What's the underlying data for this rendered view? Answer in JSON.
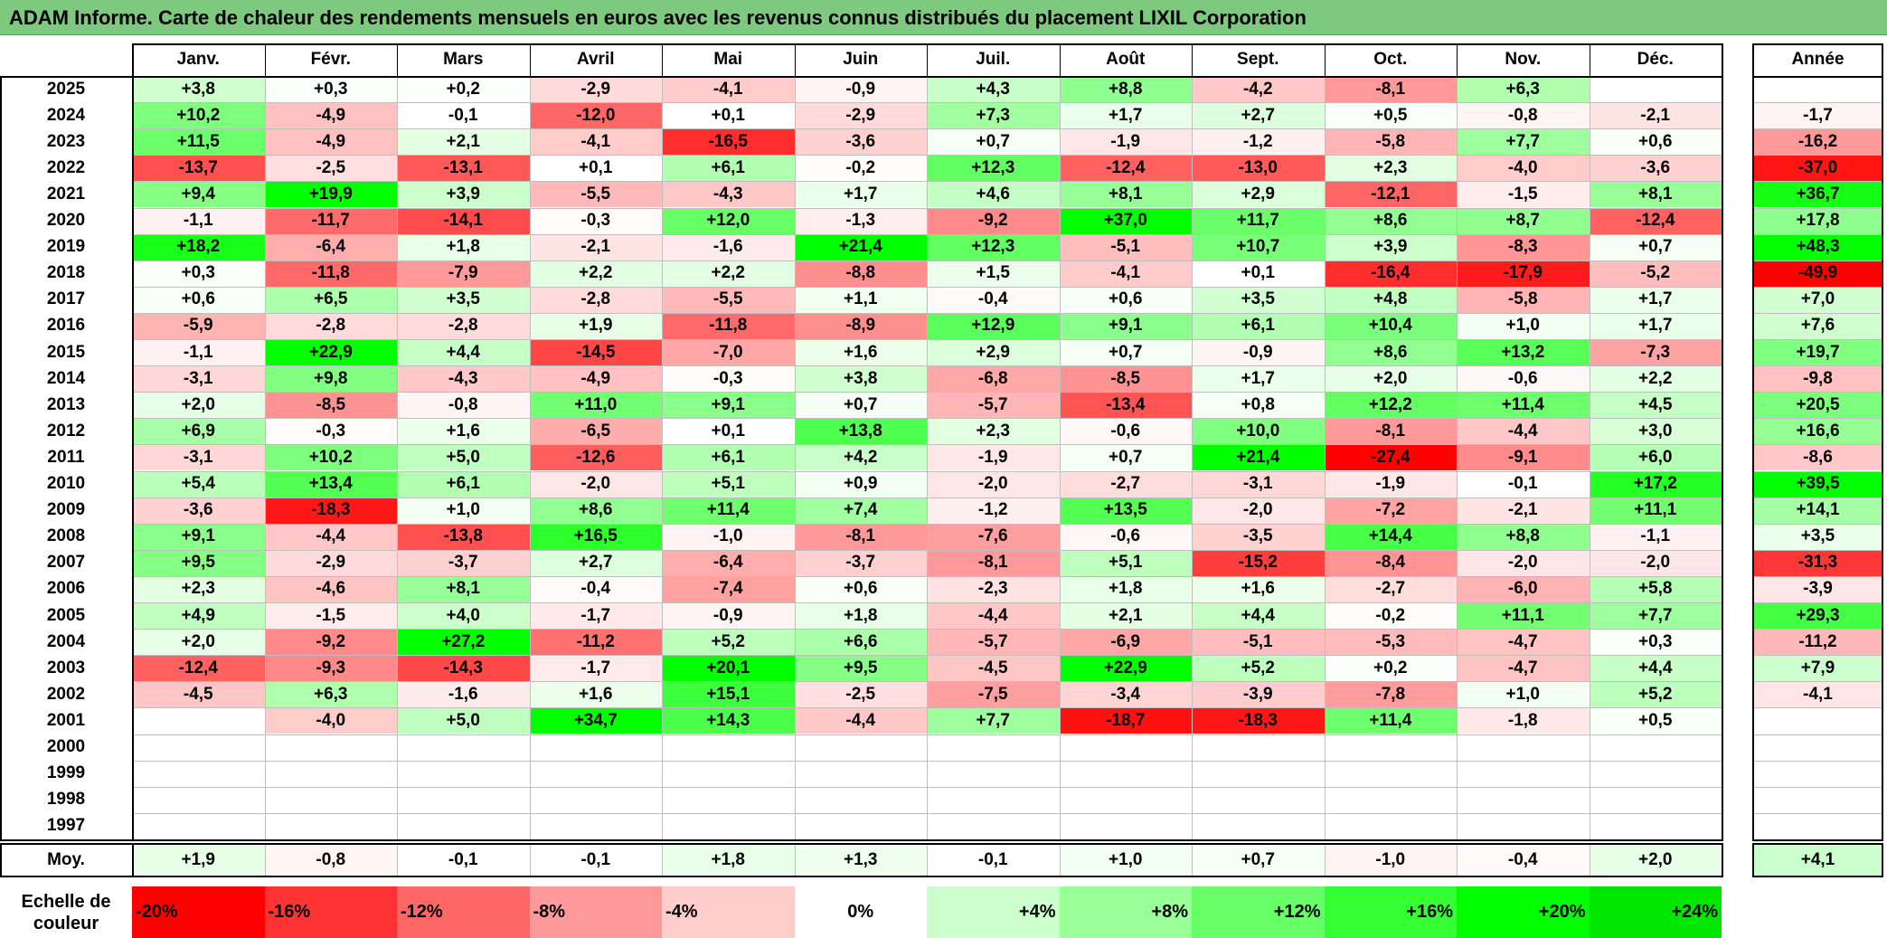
{
  "title": "ADAM Informe. Carte de chaleur des rendements mensuels en euros avec les revenus connus distribués du placement LIXIL Corporation",
  "chart_data": {
    "type": "heatmap",
    "months": [
      "Janv.",
      "Févr.",
      "Mars",
      "Avril",
      "Mai",
      "Juin",
      "Juil.",
      "Août",
      "Sept.",
      "Oct.",
      "Nov.",
      "Déc."
    ],
    "year_header": "Année",
    "years": [
      "2025",
      "2024",
      "2023",
      "2022",
      "2021",
      "2020",
      "2019",
      "2018",
      "2017",
      "2016",
      "2015",
      "2014",
      "2013",
      "2012",
      "2011",
      "2010",
      "2009",
      "2008",
      "2007",
      "2006",
      "2005",
      "2004",
      "2003",
      "2002",
      "2001",
      "2000",
      "1999",
      "1998",
      "1997"
    ],
    "values": [
      [
        "+3,8",
        "+0,3",
        "+0,2",
        "-2,9",
        "-4,1",
        "-0,9",
        "+4,3",
        "+8,8",
        "-4,2",
        "-8,1",
        "+6,3",
        ""
      ],
      [
        "+10,2",
        "-4,9",
        "-0,1",
        "-12,0",
        "+0,1",
        "-2,9",
        "+7,3",
        "+1,7",
        "+2,7",
        "+0,5",
        "-0,8",
        "-2,1"
      ],
      [
        "+11,5",
        "-4,9",
        "+2,1",
        "-4,1",
        "-16,5",
        "-3,6",
        "+0,7",
        "-1,9",
        "-1,2",
        "-5,8",
        "+7,7",
        "+0,6"
      ],
      [
        "-13,7",
        "-2,5",
        "-13,1",
        "+0,1",
        "+6,1",
        "-0,2",
        "+12,3",
        "-12,4",
        "-13,0",
        "+2,3",
        "-4,0",
        "-3,6"
      ],
      [
        "+9,4",
        "+19,9",
        "+3,9",
        "-5,5",
        "-4,3",
        "+1,7",
        "+4,6",
        "+8,1",
        "+2,9",
        "-12,1",
        "-1,5",
        "+8,1"
      ],
      [
        "-1,1",
        "-11,7",
        "-14,1",
        "-0,3",
        "+12,0",
        "-1,3",
        "-9,2",
        "+37,0",
        "+11,7",
        "+8,6",
        "+8,7",
        "-12,4"
      ],
      [
        "+18,2",
        "-6,4",
        "+1,8",
        "-2,1",
        "-1,6",
        "+21,4",
        "+12,3",
        "-5,1",
        "+10,7",
        "+3,9",
        "-8,3",
        "+0,7"
      ],
      [
        "+0,3",
        "-11,8",
        "-7,9",
        "+2,2",
        "+2,2",
        "-8,8",
        "+1,5",
        "-4,1",
        "+0,1",
        "-16,4",
        "-17,9",
        "-5,2"
      ],
      [
        "+0,6",
        "+6,5",
        "+3,5",
        "-2,8",
        "-5,5",
        "+1,1",
        "-0,4",
        "+0,6",
        "+3,5",
        "+4,8",
        "-5,8",
        "+1,7"
      ],
      [
        "-5,9",
        "-2,8",
        "-2,8",
        "+1,9",
        "-11,8",
        "-8,9",
        "+12,9",
        "+9,1",
        "+6,1",
        "+10,4",
        "+1,0",
        "+1,7"
      ],
      [
        "-1,1",
        "+22,9",
        "+4,4",
        "-14,5",
        "-7,0",
        "+1,6",
        "+2,9",
        "+0,7",
        "-0,9",
        "+8,6",
        "+13,2",
        "-7,3"
      ],
      [
        "-3,1",
        "+9,8",
        "-4,3",
        "-4,9",
        "-0,3",
        "+3,8",
        "-6,8",
        "-8,5",
        "+1,7",
        "+2,0",
        "-0,6",
        "+2,2"
      ],
      [
        "+2,0",
        "-8,5",
        "-0,8",
        "+11,0",
        "+9,1",
        "+0,7",
        "-5,7",
        "-13,4",
        "+0,8",
        "+12,2",
        "+11,4",
        "+4,5"
      ],
      [
        "+6,9",
        "-0,3",
        "+1,6",
        "-6,5",
        "+0,1",
        "+13,8",
        "+2,3",
        "-0,6",
        "+10,0",
        "-8,1",
        "-4,4",
        "+3,0"
      ],
      [
        "-3,1",
        "+10,2",
        "+5,0",
        "-12,6",
        "+6,1",
        "+4,2",
        "-1,9",
        "+0,7",
        "+21,4",
        "-27,4",
        "-9,1",
        "+6,0"
      ],
      [
        "+5,4",
        "+13,4",
        "+6,1",
        "-2,0",
        "+5,1",
        "+0,9",
        "-2,0",
        "-2,7",
        "-3,1",
        "-1,9",
        "-0,1",
        "+17,2"
      ],
      [
        "-3,6",
        "-18,3",
        "+1,0",
        "+8,6",
        "+11,4",
        "+7,4",
        "-1,2",
        "+13,5",
        "-2,0",
        "-7,2",
        "-2,1",
        "+11,1"
      ],
      [
        "+9,1",
        "-4,4",
        "-13,8",
        "+16,5",
        "-1,0",
        "-8,1",
        "-7,6",
        "-0,6",
        "-3,5",
        "+14,4",
        "+8,8",
        "-1,1"
      ],
      [
        "+9,5",
        "-2,9",
        "-3,7",
        "+2,7",
        "-6,4",
        "-3,7",
        "-8,1",
        "+5,1",
        "-15,2",
        "-8,4",
        "-2,0",
        "-2,0"
      ],
      [
        "+2,3",
        "-4,6",
        "+8,1",
        "-0,4",
        "-7,4",
        "+0,6",
        "-2,3",
        "+1,8",
        "+1,6",
        "-2,7",
        "-6,0",
        "+5,8"
      ],
      [
        "+4,9",
        "-1,5",
        "+4,0",
        "-1,7",
        "-0,9",
        "+1,8",
        "-4,4",
        "+2,1",
        "+4,4",
        "-0,2",
        "+11,1",
        "+7,7"
      ],
      [
        "+2,0",
        "-9,2",
        "+27,2",
        "-11,2",
        "+5,2",
        "+6,6",
        "-5,7",
        "-6,9",
        "-5,1",
        "-5,3",
        "-4,7",
        "+0,3"
      ],
      [
        "-12,4",
        "-9,3",
        "-14,3",
        "-1,7",
        "+20,1",
        "+9,5",
        "-4,5",
        "+22,9",
        "+5,2",
        "+0,2",
        "-4,7",
        "+4,4"
      ],
      [
        "-4,5",
        "+6,3",
        "-1,6",
        "+1,6",
        "+15,1",
        "-2,5",
        "-7,5",
        "-3,4",
        "-3,9",
        "-7,8",
        "+1,0",
        "+5,2"
      ],
      [
        "",
        "-4,0",
        "+5,0",
        "+34,7",
        "+14,3",
        "-4,4",
        "+7,7",
        "-18,7",
        "-18,3",
        "+11,4",
        "-1,8",
        "+0,5"
      ],
      [
        "",
        "",
        "",
        "",
        "",
        "",
        "",
        "",
        "",
        "",
        "",
        ""
      ],
      [
        "",
        "",
        "",
        "",
        "",
        "",
        "",
        "",
        "",
        "",
        "",
        ""
      ],
      [
        "",
        "",
        "",
        "",
        "",
        "",
        "",
        "",
        "",
        "",
        "",
        ""
      ],
      [
        "",
        "",
        "",
        "",
        "",
        "",
        "",
        "",
        "",
        "",
        "",
        ""
      ]
    ],
    "annual": [
      "",
      "-1,7",
      "-16,2",
      "-37,0",
      "+36,7",
      "+17,8",
      "+48,3",
      "-49,9",
      "+7,0",
      "+7,6",
      "+19,7",
      "-9,8",
      "+20,5",
      "+16,6",
      "-8,6",
      "+39,5",
      "+14,1",
      "+3,5",
      "-31,3",
      "-3,9",
      "+29,3",
      "-11,2",
      "+7,9",
      "-4,1",
      "",
      "",
      "",
      "",
      ""
    ],
    "average_label": "Moy.",
    "averages": [
      "+1,9",
      "-0,8",
      "-0,1",
      "-0,1",
      "+1,8",
      "+1,3",
      "-0,1",
      "+1,0",
      "+0,7",
      "-1,0",
      "-0,4",
      "+2,0"
    ],
    "average_annual": "+4,1",
    "scale_label": "Echelle de couleur",
    "scale": [
      {
        "label": "-20%",
        "value": -20,
        "color": "#ff0000"
      },
      {
        "label": "-16%",
        "value": -16,
        "color": "#ff3333"
      },
      {
        "label": "-12%",
        "value": -12,
        "color": "#ff6666"
      },
      {
        "label": "-8%",
        "value": -8,
        "color": "#ff9999"
      },
      {
        "label": "-4%",
        "value": -4,
        "color": "#ffcccc"
      },
      {
        "label": "0%",
        "value": 0,
        "color": "#ffffff"
      },
      {
        "label": "+4%",
        "value": 4,
        "color": "#ccffcc"
      },
      {
        "label": "+8%",
        "value": 8,
        "color": "#99ff99"
      },
      {
        "label": "+12%",
        "value": 12,
        "color": "#66ff66"
      },
      {
        "label": "+16%",
        "value": 16,
        "color": "#33ff33"
      },
      {
        "label": "+20%",
        "value": 20,
        "color": "#00ff00"
      },
      {
        "label": "+24%",
        "value": 24,
        "color": "#00e600"
      }
    ]
  }
}
